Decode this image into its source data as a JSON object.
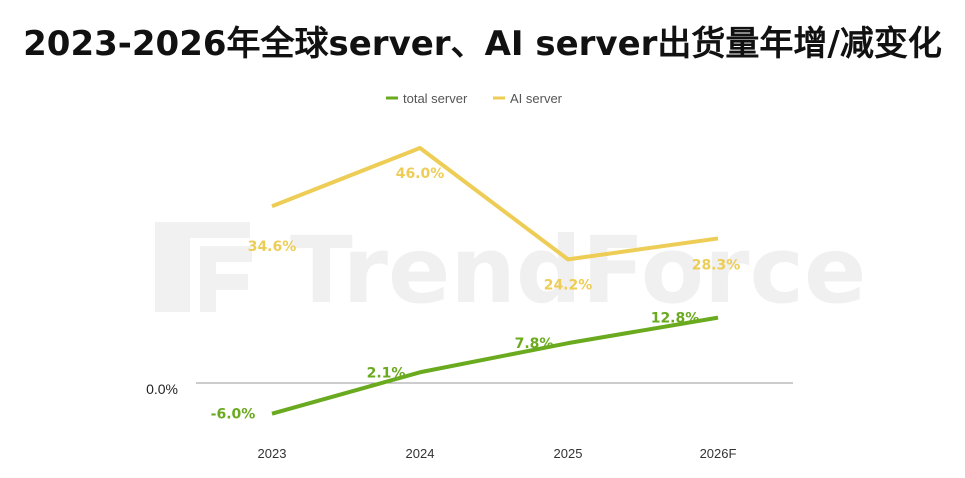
{
  "title": "2023-2026年全球server、AI server出货量年增/减变化",
  "watermark": "TrendForce",
  "colors": {
    "total": "#6aaa1f",
    "ai": "#edcd55",
    "axis": "#9a9a9a",
    "watermark": "#d7d7d7"
  },
  "chart_data": {
    "type": "line",
    "title": "2023-2026年全球server、AI server出货量年增/减变化",
    "categories": [
      "2023",
      "2024",
      "2025",
      "2026F"
    ],
    "series": [
      {
        "name": "total server",
        "values": [
          -6.0,
          2.1,
          7.8,
          12.8
        ],
        "labels": [
          "-6.0%",
          "2.1%",
          "7.8%",
          "12.8%"
        ]
      },
      {
        "name": "AI server",
        "values": [
          34.6,
          46.0,
          24.2,
          28.3
        ],
        "labels": [
          "34.6%",
          "46.0%",
          "24.2%",
          "28.3%"
        ]
      }
    ],
    "zero_label": "0.0%",
    "ylim": [
      -12,
      56
    ],
    "legend_position": "top",
    "grid": false
  }
}
